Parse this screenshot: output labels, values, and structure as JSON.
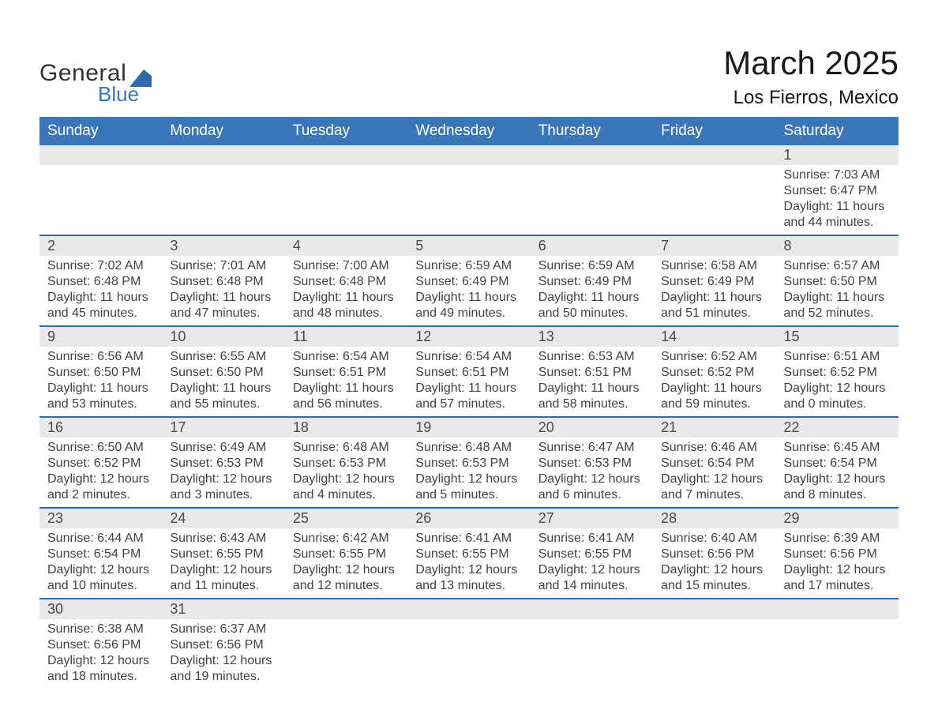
{
  "logo": {
    "text1": "General",
    "text2": "Blue",
    "shape_color": "#2d6aae"
  },
  "title": "March 2025",
  "subtitle": "Los Fierros, Mexico",
  "colors": {
    "header_bg": "#3b76b8",
    "divider": "#2d6aae",
    "daynum_bg": "#e9e9e9",
    "page_bg": "#ffffff",
    "text": "#2b2b2b"
  },
  "typography": {
    "title_fontsize": 42,
    "subtitle_fontsize": 24,
    "header_fontsize": 19,
    "daynum_fontsize": 18,
    "body_fontsize": 16,
    "font_family": "Arial"
  },
  "day_headers": [
    "Sunday",
    "Monday",
    "Tuesday",
    "Wednesday",
    "Thursday",
    "Friday",
    "Saturday"
  ],
  "weeks": [
    [
      null,
      null,
      null,
      null,
      null,
      null,
      {
        "n": "1",
        "sunrise": "7:03 AM",
        "sunset": "6:47 PM",
        "daylight": "11 hours and 44 minutes."
      }
    ],
    [
      {
        "n": "2",
        "sunrise": "7:02 AM",
        "sunset": "6:48 PM",
        "daylight": "11 hours and 45 minutes."
      },
      {
        "n": "3",
        "sunrise": "7:01 AM",
        "sunset": "6:48 PM",
        "daylight": "11 hours and 47 minutes."
      },
      {
        "n": "4",
        "sunrise": "7:00 AM",
        "sunset": "6:48 PM",
        "daylight": "11 hours and 48 minutes."
      },
      {
        "n": "5",
        "sunrise": "6:59 AM",
        "sunset": "6:49 PM",
        "daylight": "11 hours and 49 minutes."
      },
      {
        "n": "6",
        "sunrise": "6:59 AM",
        "sunset": "6:49 PM",
        "daylight": "11 hours and 50 minutes."
      },
      {
        "n": "7",
        "sunrise": "6:58 AM",
        "sunset": "6:49 PM",
        "daylight": "11 hours and 51 minutes."
      },
      {
        "n": "8",
        "sunrise": "6:57 AM",
        "sunset": "6:50 PM",
        "daylight": "11 hours and 52 minutes."
      }
    ],
    [
      {
        "n": "9",
        "sunrise": "6:56 AM",
        "sunset": "6:50 PM",
        "daylight": "11 hours and 53 minutes."
      },
      {
        "n": "10",
        "sunrise": "6:55 AM",
        "sunset": "6:50 PM",
        "daylight": "11 hours and 55 minutes."
      },
      {
        "n": "11",
        "sunrise": "6:54 AM",
        "sunset": "6:51 PM",
        "daylight": "11 hours and 56 minutes."
      },
      {
        "n": "12",
        "sunrise": "6:54 AM",
        "sunset": "6:51 PM",
        "daylight": "11 hours and 57 minutes."
      },
      {
        "n": "13",
        "sunrise": "6:53 AM",
        "sunset": "6:51 PM",
        "daylight": "11 hours and 58 minutes."
      },
      {
        "n": "14",
        "sunrise": "6:52 AM",
        "sunset": "6:52 PM",
        "daylight": "11 hours and 59 minutes."
      },
      {
        "n": "15",
        "sunrise": "6:51 AM",
        "sunset": "6:52 PM",
        "daylight": "12 hours and 0 minutes."
      }
    ],
    [
      {
        "n": "16",
        "sunrise": "6:50 AM",
        "sunset": "6:52 PM",
        "daylight": "12 hours and 2 minutes."
      },
      {
        "n": "17",
        "sunrise": "6:49 AM",
        "sunset": "6:53 PM",
        "daylight": "12 hours and 3 minutes."
      },
      {
        "n": "18",
        "sunrise": "6:48 AM",
        "sunset": "6:53 PM",
        "daylight": "12 hours and 4 minutes."
      },
      {
        "n": "19",
        "sunrise": "6:48 AM",
        "sunset": "6:53 PM",
        "daylight": "12 hours and 5 minutes."
      },
      {
        "n": "20",
        "sunrise": "6:47 AM",
        "sunset": "6:53 PM",
        "daylight": "12 hours and 6 minutes."
      },
      {
        "n": "21",
        "sunrise": "6:46 AM",
        "sunset": "6:54 PM",
        "daylight": "12 hours and 7 minutes."
      },
      {
        "n": "22",
        "sunrise": "6:45 AM",
        "sunset": "6:54 PM",
        "daylight": "12 hours and 8 minutes."
      }
    ],
    [
      {
        "n": "23",
        "sunrise": "6:44 AM",
        "sunset": "6:54 PM",
        "daylight": "12 hours and 10 minutes."
      },
      {
        "n": "24",
        "sunrise": "6:43 AM",
        "sunset": "6:55 PM",
        "daylight": "12 hours and 11 minutes."
      },
      {
        "n": "25",
        "sunrise": "6:42 AM",
        "sunset": "6:55 PM",
        "daylight": "12 hours and 12 minutes."
      },
      {
        "n": "26",
        "sunrise": "6:41 AM",
        "sunset": "6:55 PM",
        "daylight": "12 hours and 13 minutes."
      },
      {
        "n": "27",
        "sunrise": "6:41 AM",
        "sunset": "6:55 PM",
        "daylight": "12 hours and 14 minutes."
      },
      {
        "n": "28",
        "sunrise": "6:40 AM",
        "sunset": "6:56 PM",
        "daylight": "12 hours and 15 minutes."
      },
      {
        "n": "29",
        "sunrise": "6:39 AM",
        "sunset": "6:56 PM",
        "daylight": "12 hours and 17 minutes."
      }
    ],
    [
      {
        "n": "30",
        "sunrise": "6:38 AM",
        "sunset": "6:56 PM",
        "daylight": "12 hours and 18 minutes."
      },
      {
        "n": "31",
        "sunrise": "6:37 AM",
        "sunset": "6:56 PM",
        "daylight": "12 hours and 19 minutes."
      },
      null,
      null,
      null,
      null,
      null
    ]
  ],
  "labels": {
    "sunrise": "Sunrise: ",
    "sunset": "Sunset: ",
    "daylight": "Daylight: "
  }
}
